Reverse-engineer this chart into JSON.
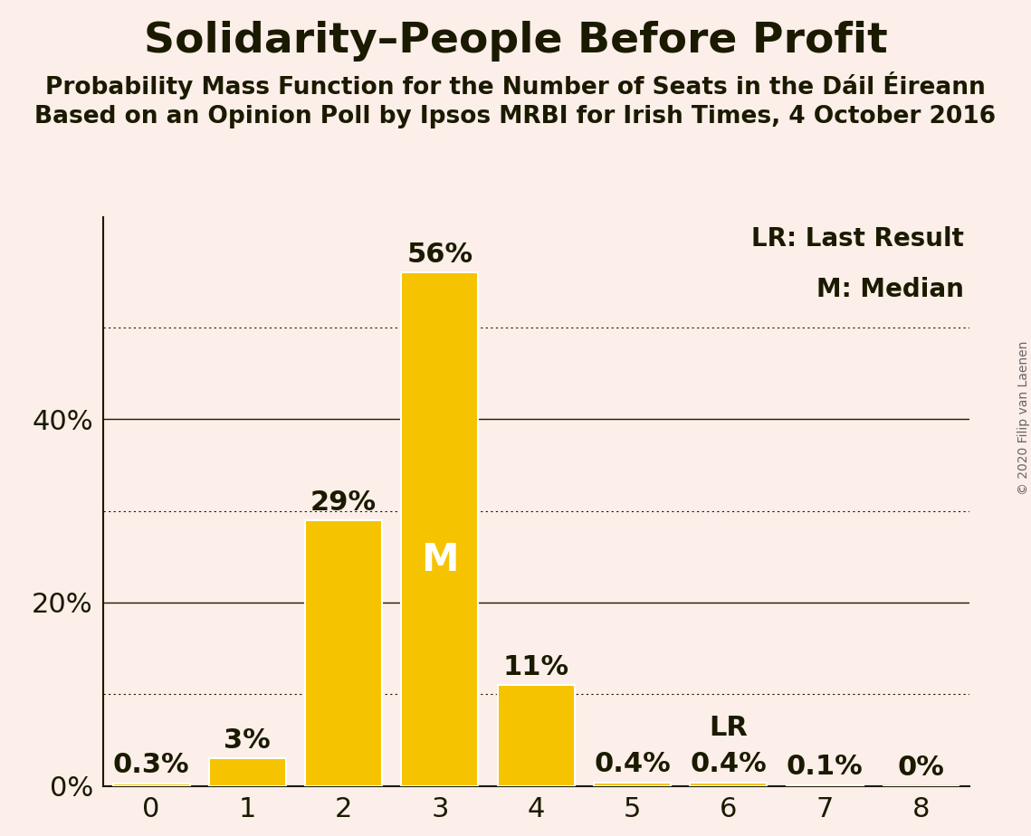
{
  "title": "Solidarity–People Before Profit",
  "subtitle1": "Probability Mass Function for the Number of Seats in the Dáil Éireann",
  "subtitle2": "Based on an Opinion Poll by Ipsos MRBI for Irish Times, 4 October 2016",
  "copyright": "© 2020 Filip van Laenen",
  "categories": [
    0,
    1,
    2,
    3,
    4,
    5,
    6,
    7,
    8
  ],
  "values": [
    0.3,
    3.0,
    29.0,
    56.0,
    11.0,
    0.4,
    0.4,
    0.1,
    0.0
  ],
  "bar_color": "#F5C300",
  "background_color": "#FCEEE8",
  "text_color": "#1a1a00",
  "median_bar": 3,
  "lr_bar": 6,
  "legend_lr": "LR: Last Result",
  "legend_m": "M: Median",
  "yticks_solid": [
    20,
    40
  ],
  "yticks_dotted": [
    10,
    30,
    50
  ],
  "ytick_labels": [
    0,
    20,
    40
  ],
  "ylim": [
    0,
    62
  ],
  "xlim": [
    -0.5,
    8.5
  ],
  "bar_width": 0.8,
  "line_color": "#1a1a00",
  "title_fontsize": 34,
  "subtitle_fontsize": 19,
  "tick_fontsize": 22,
  "annotation_fontsize": 22,
  "legend_fontsize": 20,
  "median_label_fontsize": 30,
  "copyright_fontsize": 10
}
